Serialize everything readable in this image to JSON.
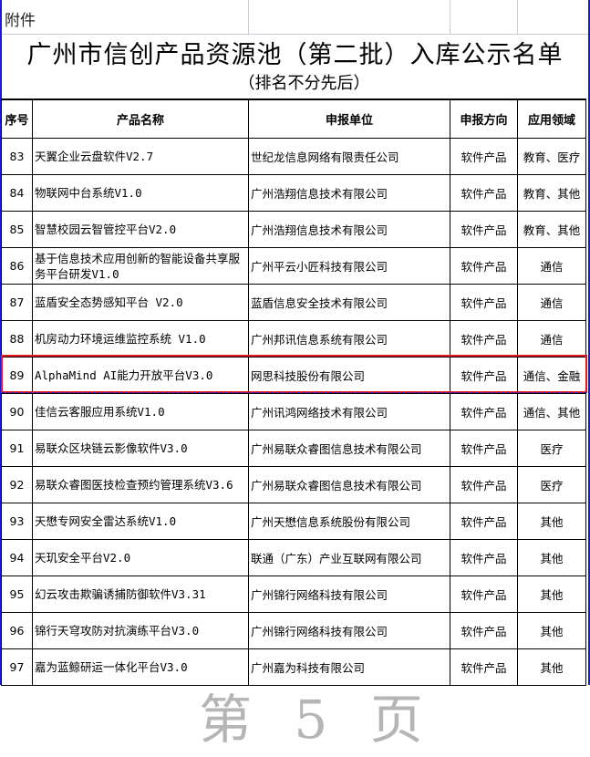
{
  "attachment_label": "附件",
  "title": "广州市信创产品资源池（第二批）入库公示名单",
  "subtitle": "（排名不分先后）",
  "columns": [
    "序号",
    "产品名称",
    "申报单位",
    "申报方向",
    "应用领域"
  ],
  "rows": [
    {
      "no": "83",
      "product": "天翼企业云盘软件V2.7",
      "company": "世纪龙信息网络有限责任公司",
      "direction": "软件产品",
      "field": "教育、医疗"
    },
    {
      "no": "84",
      "product": "物联网中台系统V1.0",
      "company": "广州浩翔信息技术有限公司",
      "direction": "软件产品",
      "field": "教育、其他"
    },
    {
      "no": "85",
      "product": "智慧校园云智管控平台V2.0",
      "company": "广州浩翔信息技术有限公司",
      "direction": "软件产品",
      "field": "教育、其他"
    },
    {
      "no": "86",
      "product": "基于信息技术应用创新的智能设备共享服务平台研发V1.0",
      "company": "广州平云小匠科技有限公司",
      "direction": "软件产品",
      "field": "通信"
    },
    {
      "no": "87",
      "product": "蓝盾安全态势感知平台 V2.0",
      "company": "蓝盾信息安全技术有限公司",
      "direction": "软件产品",
      "field": "通信"
    },
    {
      "no": "88",
      "product": "机房动力环境运维监控系统 V1.0",
      "company": "广州邦讯信息系统有限公司",
      "direction": "软件产品",
      "field": "通信"
    },
    {
      "no": "89",
      "product": "AlphaMind AI能力开放平台V3.0",
      "company": "网思科技股份有限公司",
      "direction": "软件产品",
      "field": "通信、金融"
    },
    {
      "no": "90",
      "product": "佳信云客服应用系统V1.0",
      "company": "广州讯鸿网络技术有限公司",
      "direction": "软件产品",
      "field": "通信、其他"
    },
    {
      "no": "91",
      "product": "易联众区块链云影像软件V3.0",
      "company": "广州易联众睿图信息技术有限公司",
      "direction": "软件产品",
      "field": "医疗"
    },
    {
      "no": "92",
      "product": "易联众睿图医技检查预约管理系统V3.6",
      "company": "广州易联众睿图信息技术有限公司",
      "direction": "软件产品",
      "field": "医疗"
    },
    {
      "no": "93",
      "product": "天懋专网安全雷达系统V1.0",
      "company": "广州天懋信息系统股份有限公司",
      "direction": "软件产品",
      "field": "其他"
    },
    {
      "no": "94",
      "product": "天玑安全平台V2.0",
      "company": "联通（广东）产业互联网有限公司",
      "direction": "软件产品",
      "field": "其他"
    },
    {
      "no": "95",
      "product": "幻云攻击欺骗诱捕防御软件V3.31",
      "company": "广州锦行网络科技有限公司",
      "direction": "软件产品",
      "field": "其他"
    },
    {
      "no": "96",
      "product": "锦行天穹攻防对抗演练平台V3.0",
      "company": "广州锦行网络科技有限公司",
      "direction": "软件产品",
      "field": "其他"
    },
    {
      "no": "97",
      "product": "嘉为蓝鲸研运一体化平台V3.0",
      "company": "广州嘉为科技有限公司",
      "direction": "软件产品",
      "field": "其他"
    }
  ],
  "highlighted_row": "89",
  "highlight_color": "#e8141c",
  "watermark": "第 5 页"
}
